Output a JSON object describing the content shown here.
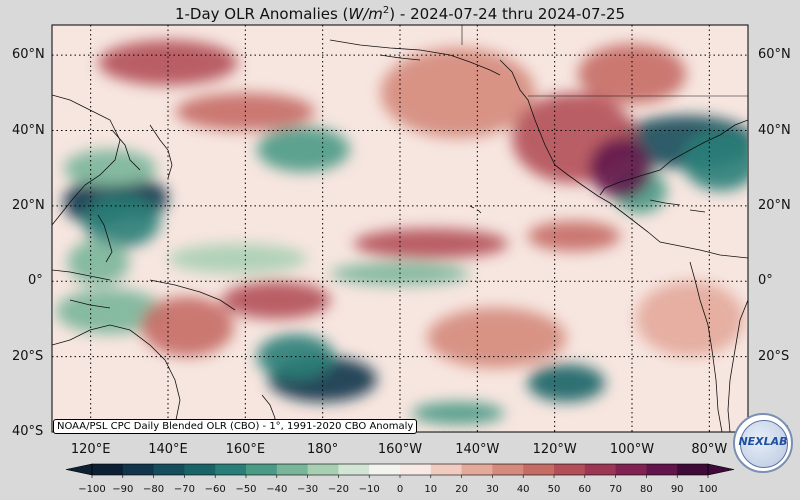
{
  "title": {
    "prefix": "1-Day OLR Anomalies (",
    "unit_base": "W/m",
    "unit_exp": "2",
    "suffix": ") - 2024-07-24 thru 2024-07-25"
  },
  "credit": "NOAA/PSL CPC Daily Blended OLR (CBO) - 1°, 1991-2020 CBO Anomaly",
  "logo": {
    "text": "NEXLAB",
    "icon": "nexlab-globe-logo"
  },
  "lat_labels": [
    "60°N",
    "40°N",
    "20°N",
    "0°",
    "20°S",
    "40°S"
  ],
  "lat_values": [
    60,
    40,
    20,
    0,
    -20,
    -40
  ],
  "lon_labels": [
    "120°E",
    "140°E",
    "160°E",
    "180°",
    "160°W",
    "140°W",
    "120°W",
    "100°W",
    "80°W"
  ],
  "lon_values": [
    120,
    140,
    160,
    180,
    200,
    220,
    240,
    260,
    280
  ],
  "map_extent": {
    "lon_min": 110,
    "lon_max": 290,
    "lat_min": -40,
    "lat_max": 68
  },
  "colorbar": {
    "ticks": [
      "−100",
      "−90",
      "−80",
      "−70",
      "−60",
      "−50",
      "−40",
      "−30",
      "−20",
      "−10",
      "0",
      "10",
      "20",
      "30",
      "40",
      "50",
      "60",
      "70",
      "80",
      "90",
      "100"
    ],
    "min": -100,
    "max": 100,
    "colors": [
      "#0d1f33",
      "#12354a",
      "#154d5b",
      "#1a6467",
      "#2a7e78",
      "#4b9a86",
      "#79b59a",
      "#a9cfb2",
      "#d3e6d6",
      "#f3f4f0",
      "#f7e9e4",
      "#efcbc0",
      "#e3a99b",
      "#d48a7c",
      "#c56c65",
      "#b24f58",
      "#9b3755",
      "#802352",
      "#62154b",
      "#3f0a37"
    ]
  },
  "colors": {
    "background": "#d9d9d9",
    "ocean_neutral": "#f7e6e0",
    "positive_anomaly": "#d48a7c",
    "negative_anomaly": "#2a7e78"
  },
  "anomaly_regions": [
    {
      "lon": 122,
      "lat": 21,
      "rx": 9,
      "ry": 6,
      "value": -90
    },
    {
      "lon": 133,
      "lat": 22,
      "rx": 7,
      "ry": 5,
      "value": -85
    },
    {
      "lon": 128,
      "lat": 16,
      "rx": 10,
      "ry": 7,
      "value": -60
    },
    {
      "lon": 125,
      "lat": 30,
      "rx": 12,
      "ry": 5,
      "value": -40
    },
    {
      "lon": 122,
      "lat": 5,
      "rx": 8,
      "ry": 6,
      "value": -35
    },
    {
      "lon": 175,
      "lat": 35,
      "rx": 12,
      "ry": 6,
      "value": -45
    },
    {
      "lon": 158,
      "lat": 6,
      "rx": 18,
      "ry": 4,
      "value": -30
    },
    {
      "lon": 125,
      "lat": -8,
      "rx": 14,
      "ry": 6,
      "value": -40
    },
    {
      "lon": 180,
      "lat": -26,
      "rx": 14,
      "ry": 6,
      "value": -85
    },
    {
      "lon": 173,
      "lat": -20,
      "rx": 10,
      "ry": 6,
      "value": -55
    },
    {
      "lon": 243,
      "lat": -27,
      "rx": 10,
      "ry": 5,
      "value": -70
    },
    {
      "lon": 215,
      "lat": -35,
      "rx": 12,
      "ry": 3,
      "value": -45
    },
    {
      "lon": 274,
      "lat": 37,
      "rx": 18,
      "ry": 7,
      "value": -80
    },
    {
      "lon": 283,
      "lat": 32,
      "rx": 10,
      "ry": 8,
      "value": -60
    },
    {
      "lon": 262,
      "lat": 24,
      "rx": 7,
      "ry": 6,
      "value": -45
    },
    {
      "lon": 200,
      "lat": 2,
      "rx": 18,
      "ry": 3,
      "value": -35
    },
    {
      "lon": 140,
      "lat": 58,
      "rx": 18,
      "ry": 6,
      "value": 55
    },
    {
      "lon": 215,
      "lat": 50,
      "rx": 20,
      "ry": 12,
      "value": 35
    },
    {
      "lon": 245,
      "lat": 38,
      "rx": 16,
      "ry": 12,
      "value": 55
    },
    {
      "lon": 257,
      "lat": 30,
      "rx": 8,
      "ry": 8,
      "value": 80
    },
    {
      "lon": 208,
      "lat": 10,
      "rx": 20,
      "ry": 4,
      "value": 50
    },
    {
      "lon": 245,
      "lat": 12,
      "rx": 12,
      "ry": 4,
      "value": 45
    },
    {
      "lon": 168,
      "lat": -5,
      "rx": 14,
      "ry": 5,
      "value": 55
    },
    {
      "lon": 145,
      "lat": -12,
      "rx": 12,
      "ry": 8,
      "value": 45
    },
    {
      "lon": 225,
      "lat": -15,
      "rx": 18,
      "ry": 8,
      "value": 30
    },
    {
      "lon": 160,
      "lat": 45,
      "rx": 18,
      "ry": 5,
      "value": 40
    },
    {
      "lon": 260,
      "lat": 55,
      "rx": 14,
      "ry": 8,
      "value": 40
    },
    {
      "lon": 275,
      "lat": -10,
      "rx": 14,
      "ry": 10,
      "value": 25
    }
  ]
}
